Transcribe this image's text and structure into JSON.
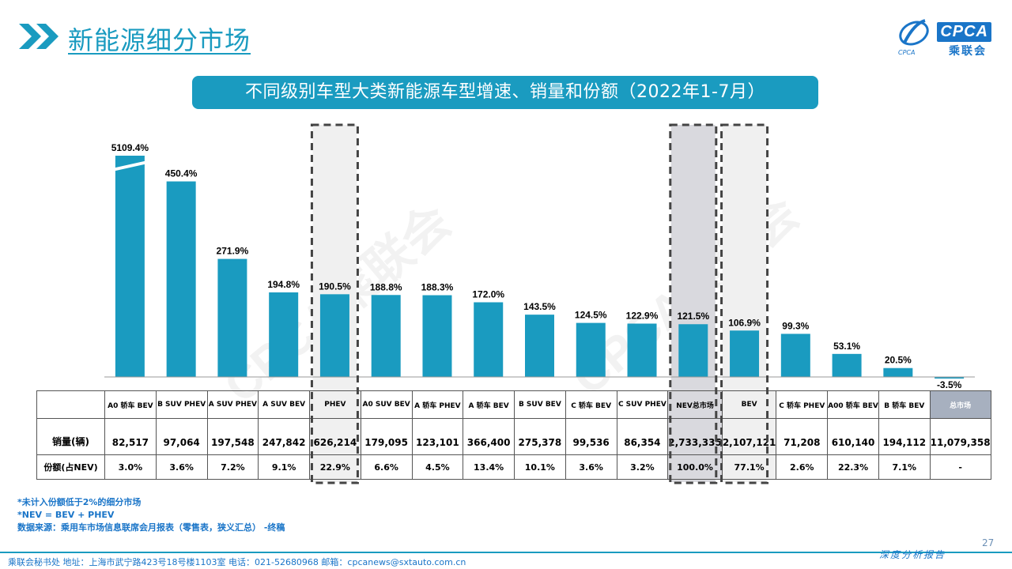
{
  "header": {
    "title": "新能源细分市场"
  },
  "logo": {
    "en": "CPCA",
    "cn": "乘联会",
    "sub": "CPCA"
  },
  "subtitle": "不同级别车型大类新能源车型增速、销量和份额（2022年1-7月）",
  "colors": {
    "accent": "#1a9bc0",
    "bar": "#1a9bc0",
    "highlight_gray": "#d9d9de",
    "highlight_light": "#f0f0f0",
    "total_head": "#a7b0bf"
  },
  "chart_data": {
    "type": "bar",
    "title": "不同级别车型大类新能源车型增速、销量和份额（2022年1-7月）",
    "categories": [
      "A0 轿车 BEV",
      "B SUV PHEV",
      "A SUV PHEV",
      "A SUV BEV",
      "PHEV",
      "A0 SUV BEV",
      "A 轿车 PHEV",
      "A 轿车 BEV",
      "B SUV BEV",
      "C 轿车 BEV",
      "C SUV PHEV",
      "NEV总市场",
      "BEV",
      "C 轿车 PHEV",
      "A00 轿车 BEV",
      "B 轿车 BEV",
      "总市场"
    ],
    "values": [
      5109.4,
      450.4,
      271.9,
      194.8,
      190.5,
      188.8,
      188.3,
      172.0,
      143.5,
      124.5,
      122.9,
      121.5,
      106.9,
      99.3,
      53.1,
      20.5,
      -3.5
    ],
    "value_labels": [
      "5109.4%",
      "450.4%",
      "271.9%",
      "194.8%",
      "190.5%",
      "188.8%",
      "188.3%",
      "172.0%",
      "143.5%",
      "124.5%",
      "122.9%",
      "121.5%",
      "106.9%",
      "99.3%",
      "53.1%",
      "20.5%",
      "-3.5%"
    ],
    "axis_break": {
      "category": "A0 轿车 BEV"
    },
    "highlighted": [
      "PHEV",
      "NEV总市场",
      "BEV"
    ],
    "table": {
      "rows": [
        {
          "label": "销量(辆)",
          "values": [
            "82,517",
            "97,064",
            "197,548",
            "247,842",
            "626,214",
            "179,095",
            "123,101",
            "366,400",
            "275,378",
            "99,536",
            "86,354",
            "2,733,335",
            "2,107,121",
            "71,208",
            "610,140",
            "194,112",
            "11,079,358"
          ]
        },
        {
          "label": "份额(占NEV)",
          "values": [
            "3.0%",
            "3.6%",
            "7.2%",
            "9.1%",
            "22.9%",
            "6.6%",
            "4.5%",
            "13.4%",
            "10.1%",
            "3.6%",
            "3.2%",
            "100.0%",
            "77.1%",
            "2.6%",
            "22.3%",
            "7.1%",
            "-"
          ]
        }
      ]
    }
  },
  "watermark": "CPCA乘联会",
  "notes": [
    "*未计入份额低于2%的细分市场",
    "*NEV = BEV + PHEV",
    "数据来源：乘用车市场信息联席会月报表（零售表，狭义汇总）  -终稿"
  ],
  "footer": "乘联会秘书处    地址：上海市武宁路423号18号楼1103室    电话：021-52680968    邮箱：cpcanews@sxtauto.com.cn",
  "page_number": "27",
  "report_label": "深度分析报告"
}
